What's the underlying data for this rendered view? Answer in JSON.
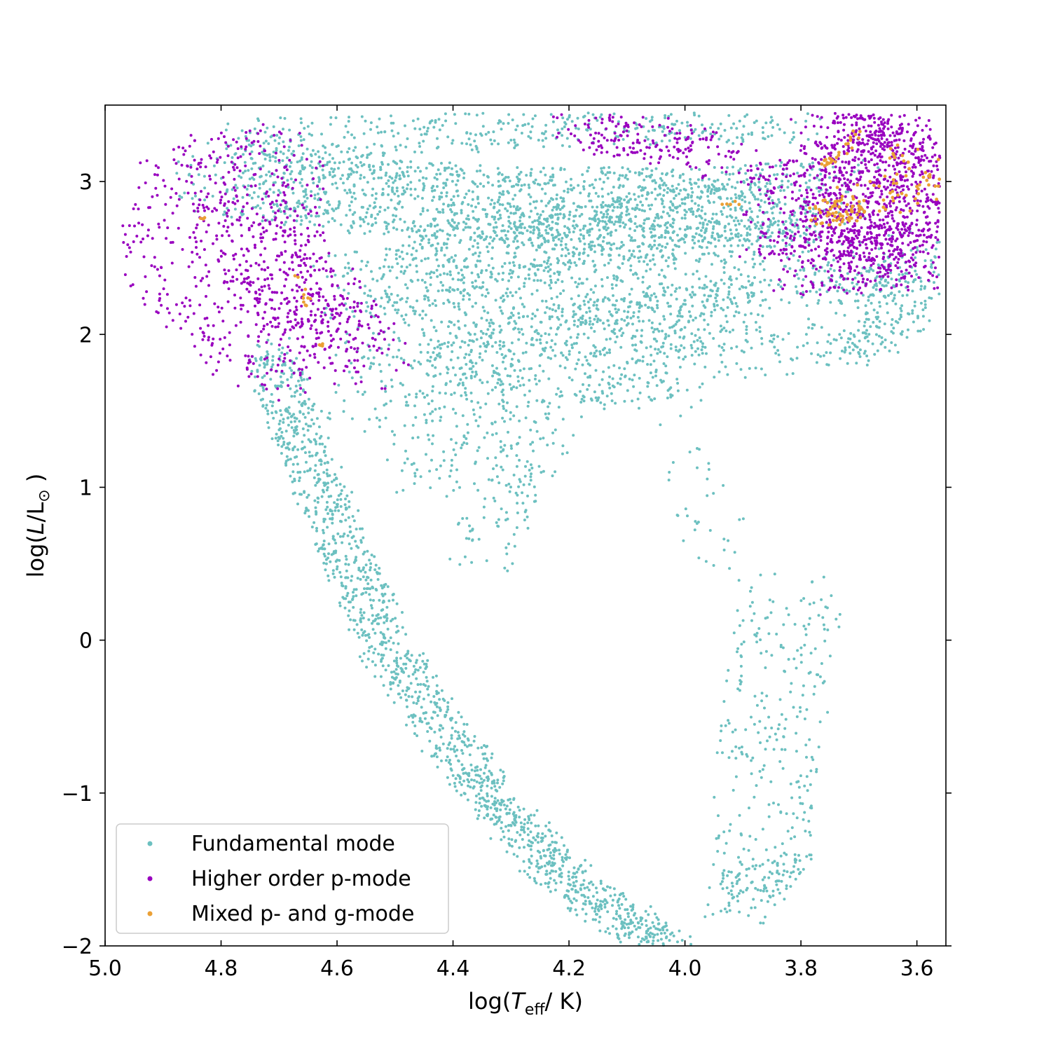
{
  "chart_data": {
    "type": "scatter",
    "title": "",
    "xlabel": "log(T_eff/ K)",
    "ylabel": "log(L/L_sun)",
    "xlim": [
      5.0,
      3.55
    ],
    "ylim": [
      -2,
      3.5
    ],
    "x_inverted": true,
    "x_ticks": [
      5.0,
      4.8,
      4.6,
      4.4,
      4.2,
      4.0,
      3.8,
      3.6
    ],
    "x_tick_labels": [
      "5.0",
      "4.8",
      "4.6",
      "4.4",
      "4.2",
      "4.0",
      "3.8",
      "3.6"
    ],
    "y_ticks": [
      -2,
      -1,
      0,
      1,
      2,
      3
    ],
    "y_tick_labels": [
      "−2",
      "−1",
      "0",
      "1",
      "2",
      "3"
    ],
    "legend_position": "lower-left",
    "grid": false,
    "series": [
      {
        "name": "Fundamental mode",
        "color": "#6cc0c0",
        "regions": [
          {
            "kind": "band",
            "points": [
              [
                4.72,
                1.9
              ],
              [
                4.62,
                0.9
              ],
              [
                4.52,
                0.0
              ],
              [
                4.42,
                -0.6
              ],
              [
                4.32,
                -1.1
              ],
              [
                4.22,
                -1.5
              ],
              [
                4.12,
                -1.8
              ],
              [
                4.02,
                -2.0
              ]
            ],
            "width": 0.09,
            "count": 1500
          },
          {
            "kind": "band",
            "points": [
              [
                4.78,
                3.05
              ],
              [
                4.55,
                2.9
              ],
              [
                4.3,
                2.85
              ],
              [
                4.1,
                2.85
              ],
              [
                3.9,
                2.85
              ],
              [
                3.77,
                2.9
              ]
            ],
            "width": 0.22,
            "count": 1400
          },
          {
            "kind": "band",
            "points": [
              [
                4.55,
                2.3
              ],
              [
                4.3,
                2.55
              ],
              [
                4.2,
                2.65
              ],
              [
                4.05,
                2.75
              ],
              [
                3.9,
                2.8
              ]
            ],
            "width": 0.2,
            "count": 700
          },
          {
            "kind": "band",
            "points": [
              [
                4.5,
                1.6
              ],
              [
                4.42,
                2.0
              ],
              [
                4.3,
                2.2
              ],
              [
                4.1,
                2.35
              ],
              [
                3.9,
                2.45
              ],
              [
                3.78,
                2.5
              ]
            ],
            "width": 0.25,
            "count": 800
          },
          {
            "kind": "band",
            "points": [
              [
                4.43,
                1.1
              ],
              [
                4.35,
                1.75
              ],
              [
                4.25,
                1.95
              ],
              [
                4.1,
                2.05
              ],
              [
                3.95,
                2.05
              ],
              [
                3.85,
                1.9
              ]
            ],
            "width": 0.2,
            "count": 600
          },
          {
            "kind": "band",
            "points": [
              [
                4.36,
                0.5
              ],
              [
                4.28,
                1.2
              ],
              [
                4.22,
                1.55
              ],
              [
                4.12,
                1.7
              ],
              [
                4.0,
                1.7
              ]
            ],
            "width": 0.12,
            "count": 250
          },
          {
            "kind": "band",
            "points": [
              [
                3.82,
                0.3
              ],
              [
                3.84,
                -0.3
              ],
              [
                3.86,
                -0.9
              ],
              [
                3.875,
                -1.5
              ]
            ],
            "width": 0.18,
            "count": 260
          },
          {
            "kind": "band",
            "points": [
              [
                3.84,
                -1.45
              ],
              [
                3.88,
                -1.6
              ],
              [
                3.91,
                -1.75
              ]
            ],
            "width": 0.12,
            "count": 120
          },
          {
            "kind": "band",
            "points": [
              [
                3.74,
                1.9
              ],
              [
                3.66,
                2.05
              ],
              [
                3.6,
                2.4
              ]
            ],
            "width": 0.12,
            "count": 180
          },
          {
            "kind": "band",
            "points": [
              [
                4.75,
                3.28
              ],
              [
                4.5,
                3.3
              ],
              [
                4.25,
                3.35
              ],
              [
                4.0,
                3.38
              ],
              [
                3.8,
                3.38
              ]
            ],
            "width": 0.12,
            "count": 400
          },
          {
            "kind": "band",
            "points": [
              [
                4.05,
                1.5
              ],
              [
                4.0,
                1.1
              ],
              [
                3.95,
                0.8
              ],
              [
                3.9,
                0.5
              ]
            ],
            "width": 0.12,
            "count": 40
          },
          {
            "kind": "band",
            "points": [
              [
                3.75,
                2.3
              ],
              [
                3.65,
                2.4
              ],
              [
                3.6,
                2.55
              ]
            ],
            "width": 0.12,
            "count": 120
          }
        ]
      },
      {
        "name": "Higher order p-mode",
        "color": "#9900bf",
        "regions": [
          {
            "kind": "band",
            "points": [
              [
                4.7,
                3.28
              ],
              [
                4.82,
                3.2
              ],
              [
                4.9,
                3.0
              ],
              [
                4.93,
                2.6
              ],
              [
                4.9,
                2.35
              ],
              [
                4.85,
                2.1
              ],
              [
                4.75,
                1.8
              ],
              [
                4.68,
                1.65
              ]
            ],
            "width": 0.1,
            "count": 220
          },
          {
            "kind": "band",
            "points": [
              [
                4.72,
                3.05
              ],
              [
                4.75,
                2.6
              ],
              [
                4.7,
                2.3
              ],
              [
                4.62,
                2.05
              ],
              [
                4.58,
                1.85
              ]
            ],
            "width": 0.22,
            "count": 650
          },
          {
            "kind": "band",
            "points": [
              [
                4.2,
                3.32
              ],
              [
                4.05,
                3.28
              ],
              [
                3.92,
                3.12
              ]
            ],
            "width": 0.12,
            "count": 180
          },
          {
            "kind": "band",
            "points": [
              [
                3.76,
                3.32
              ],
              [
                3.66,
                3.3
              ],
              [
                3.6,
                3.25
              ]
            ],
            "width": 0.12,
            "count": 260
          },
          {
            "kind": "band",
            "points": [
              [
                3.76,
                2.8
              ],
              [
                3.68,
                2.85
              ],
              [
                3.6,
                2.95
              ]
            ],
            "width": 0.3,
            "count": 900
          },
          {
            "kind": "band",
            "points": [
              [
                3.76,
                2.45
              ],
              [
                3.68,
                2.5
              ],
              [
                3.6,
                2.55
              ]
            ],
            "width": 0.2,
            "count": 300
          }
        ]
      },
      {
        "name": "Mixed p- and g-mode",
        "color": "#eba035",
        "regions": [
          {
            "kind": "band",
            "points": [
              [
                3.75,
                2.8
              ],
              [
                3.72,
                2.82
              ]
            ],
            "width": 0.08,
            "count": 60
          },
          {
            "kind": "band",
            "points": [
              [
                3.7,
                2.85
              ],
              [
                3.6,
                2.95
              ],
              [
                3.58,
                3.3
              ]
            ],
            "width": 0.12,
            "count": 70
          },
          {
            "kind": "band",
            "points": [
              [
                3.76,
                3.1
              ],
              [
                3.72,
                3.2
              ],
              [
                3.7,
                3.33
              ]
            ],
            "width": 0.02,
            "count": 25
          },
          {
            "kind": "band",
            "points": [
              [
                4.67,
                2.4
              ],
              [
                4.65,
                2.2
              ]
            ],
            "width": 0.02,
            "count": 10
          },
          {
            "kind": "band",
            "points": [
              [
                4.62,
                1.95
              ],
              [
                4.63,
                1.92
              ]
            ],
            "width": 0.01,
            "count": 4
          },
          {
            "kind": "band",
            "points": [
              [
                3.93,
                2.85
              ],
              [
                3.9,
                2.85
              ]
            ],
            "width": 0.02,
            "count": 6
          },
          {
            "kind": "band",
            "points": [
              [
                4.84,
                2.75
              ],
              [
                4.81,
                2.78
              ]
            ],
            "width": 0.01,
            "count": 3
          }
        ]
      }
    ],
    "legend": [
      {
        "label": "Fundamental mode",
        "color": "#6cc0c0"
      },
      {
        "label": "Higher order p-mode",
        "color": "#9900bf"
      },
      {
        "label": "Mixed p- and g-mode",
        "color": "#eba035"
      }
    ]
  }
}
